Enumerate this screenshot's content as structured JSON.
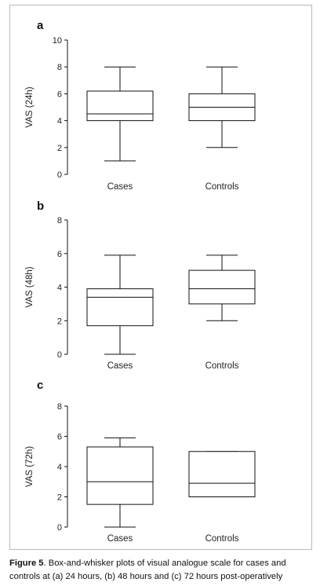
{
  "caption": {
    "label": "Figure 5",
    "text": ". Box-and-whisker plots of visual analogue scale for cases and controls at (a) 24 hours, (b) 48 hours and (c) 72 hours post-operatively"
  },
  "colors": {
    "stroke": "#111111",
    "frame": "#b9b9b9"
  },
  "chart_data": [
    {
      "type": "box",
      "panel": "a",
      "ylabel": "VAS (24h)",
      "ylim": [
        0,
        10
      ],
      "yticks": [
        0,
        2,
        4,
        6,
        8,
        10
      ],
      "categories": [
        "Cases",
        "Controls"
      ],
      "boxes": [
        {
          "category": "Cases",
          "min": 1,
          "q1": 4,
          "median": 4.5,
          "q3": 6.2,
          "max": 8
        },
        {
          "category": "Controls",
          "min": 2,
          "q1": 4,
          "median": 5,
          "q3": 6,
          "max": 8
        }
      ]
    },
    {
      "type": "box",
      "panel": "b",
      "ylabel": "VAS (48h)",
      "ylim": [
        0,
        8
      ],
      "yticks": [
        0,
        2,
        4,
        6,
        8
      ],
      "categories": [
        "Cases",
        "Controls"
      ],
      "boxes": [
        {
          "category": "Cases",
          "min": 0,
          "q1": 1.7,
          "median": 3.4,
          "q3": 3.9,
          "max": 5.9
        },
        {
          "category": "Controls",
          "min": 2,
          "q1": 3,
          "median": 3.9,
          "q3": 5,
          "max": 5.9
        }
      ]
    },
    {
      "type": "box",
      "panel": "c",
      "ylabel": "VAS (72h)",
      "ylim": [
        0,
        8
      ],
      "yticks": [
        0,
        2,
        4,
        6,
        8
      ],
      "categories": [
        "Cases",
        "Controls"
      ],
      "boxes": [
        {
          "category": "Cases",
          "min": 0,
          "q1": 1.5,
          "median": 3,
          "q3": 5.3,
          "max": 5.9
        },
        {
          "category": "Controls",
          "min": 2,
          "q1": 2,
          "median": 2.9,
          "q3": 5,
          "max": 5
        }
      ]
    }
  ]
}
